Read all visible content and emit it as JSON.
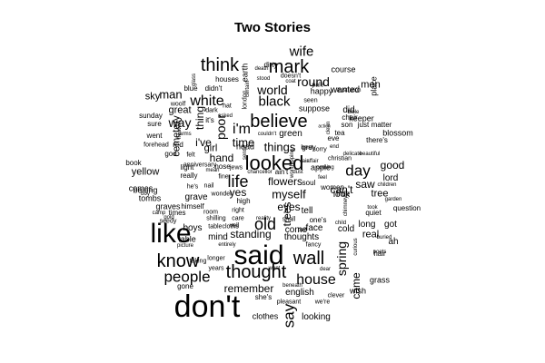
{
  "title": "Two Stories",
  "words": [
    {
      "text": "don't",
      "size": 34,
      "vertical": false
    },
    {
      "text": "like",
      "size": 30,
      "vertical": false
    },
    {
      "text": "said",
      "size": 30,
      "vertical": false
    },
    {
      "text": "looked",
      "size": 22,
      "vertical": false
    },
    {
      "text": "believe",
      "size": 20,
      "vertical": false
    },
    {
      "text": "mark",
      "size": 20,
      "vertical": false
    },
    {
      "text": "think",
      "size": 20,
      "vertical": false
    },
    {
      "text": "know",
      "size": 20,
      "vertical": false
    },
    {
      "text": "thought",
      "size": 20,
      "vertical": false
    },
    {
      "text": "wall",
      "size": 20,
      "vertical": false
    },
    {
      "text": "life",
      "size": 18,
      "vertical": false
    },
    {
      "text": "people",
      "size": 17,
      "vertical": false
    },
    {
      "text": "day",
      "size": 17,
      "vertical": false
    },
    {
      "text": "old",
      "size": 18,
      "vertical": false
    },
    {
      "text": "say",
      "size": 17,
      "vertical": true
    },
    {
      "text": "house",
      "size": 16,
      "vertical": false
    },
    {
      "text": "white",
      "size": 16,
      "vertical": false
    },
    {
      "text": "black",
      "size": 15,
      "vertical": false
    },
    {
      "text": "i'm",
      "size": 16,
      "vertical": false
    },
    {
      "text": "wife",
      "size": 15,
      "vertical": false
    },
    {
      "text": "round",
      "size": 14,
      "vertical": false
    },
    {
      "text": "world",
      "size": 14,
      "vertical": false
    },
    {
      "text": "poor",
      "size": 14,
      "vertical": true
    },
    {
      "text": "spring",
      "size": 14,
      "vertical": true
    },
    {
      "text": "myself",
      "size": 13,
      "vertical": false
    },
    {
      "text": "way",
      "size": 14,
      "vertical": false
    },
    {
      "text": "man",
      "size": 13,
      "vertical": false
    },
    {
      "text": "time",
      "size": 13,
      "vertical": false
    },
    {
      "text": "things",
      "size": 13,
      "vertical": false
    },
    {
      "text": "flowers",
      "size": 12,
      "vertical": false
    },
    {
      "text": "trees",
      "size": 12,
      "vertical": true
    },
    {
      "text": "remember",
      "size": 12,
      "vertical": false
    },
    {
      "text": "standing",
      "size": 12,
      "vertical": false
    },
    {
      "text": "thing",
      "size": 12,
      "vertical": true
    },
    {
      "text": "hand",
      "size": 12,
      "vertical": false
    },
    {
      "text": "i've",
      "size": 12,
      "vertical": false
    },
    {
      "text": "good",
      "size": 12,
      "vertical": false
    },
    {
      "text": "saw",
      "size": 12,
      "vertical": false
    },
    {
      "text": "yes",
      "size": 12,
      "vertical": false
    },
    {
      "text": "eyes",
      "size": 12,
      "vertical": false
    },
    {
      "text": "came",
      "size": 12,
      "vertical": true
    },
    {
      "text": "yellow",
      "size": 11,
      "vertical": false
    },
    {
      "text": "can't",
      "size": 12,
      "vertical": false
    },
    {
      "text": "great",
      "size": 11,
      "vertical": false
    },
    {
      "text": "sky",
      "size": 11,
      "vertical": false
    },
    {
      "text": "tree",
      "size": 11,
      "vertical": false
    },
    {
      "text": "real",
      "size": 11,
      "vertical": false
    },
    {
      "text": "men",
      "size": 11,
      "vertical": false
    },
    {
      "text": "girl",
      "size": 11,
      "vertical": false
    },
    {
      "text": "cemetery",
      "size": 11,
      "vertical": true
    },
    {
      "text": "looking",
      "size": 10,
      "vertical": false
    },
    {
      "text": "english",
      "size": 10,
      "vertical": false
    },
    {
      "text": "thoughts",
      "size": 10,
      "vertical": false
    },
    {
      "text": "mind",
      "size": 10,
      "vertical": false
    },
    {
      "text": "boys",
      "size": 10,
      "vertical": false
    },
    {
      "text": "grave",
      "size": 10,
      "vertical": false
    },
    {
      "text": "lord",
      "size": 10,
      "vertical": false
    },
    {
      "text": "tell",
      "size": 10,
      "vertical": false
    },
    {
      "text": "cold",
      "size": 10,
      "vertical": false
    },
    {
      "text": "got",
      "size": 10,
      "vertical": false
    },
    {
      "text": "long",
      "size": 10,
      "vertical": false
    },
    {
      "text": "ah",
      "size": 10,
      "vertical": false
    },
    {
      "text": "green",
      "size": 10,
      "vertical": false
    },
    {
      "text": "wanted",
      "size": 10,
      "vertical": false
    },
    {
      "text": "did",
      "size": 10,
      "vertical": false
    },
    {
      "text": "come",
      "size": 10,
      "vertical": false
    },
    {
      "text": "face",
      "size": 10,
      "vertical": false
    },
    {
      "text": "look",
      "size": 10,
      "vertical": false
    },
    {
      "text": "course",
      "size": 9,
      "vertical": false
    },
    {
      "text": "place",
      "size": 9,
      "vertical": true
    },
    {
      "text": "happy",
      "size": 9,
      "vertical": false
    },
    {
      "text": "suppose",
      "size": 9,
      "vertical": false
    },
    {
      "text": "keeper",
      "size": 9,
      "vertical": false
    },
    {
      "text": "blossom",
      "size": 9,
      "vertical": false
    },
    {
      "text": "there's",
      "size": 8,
      "vertical": false
    },
    {
      "text": "chair",
      "size": 8,
      "vertical": false
    },
    {
      "text": "son",
      "size": 8,
      "vertical": false
    },
    {
      "text": "just",
      "size": 8,
      "vertical": false
    },
    {
      "text": "matter",
      "size": 8,
      "vertical": false
    },
    {
      "text": "quiet",
      "size": 8,
      "vertical": false
    },
    {
      "text": "question",
      "size": 8,
      "vertical": false
    },
    {
      "text": "women",
      "size": 8,
      "vertical": false
    },
    {
      "text": "christian",
      "size": 7,
      "vertical": false
    },
    {
      "text": "apple",
      "size": 9,
      "vertical": false
    },
    {
      "text": "soul",
      "size": 8,
      "vertical": false
    },
    {
      "text": "little",
      "size": 8,
      "vertical": false
    },
    {
      "text": "one's",
      "size": 8,
      "vertical": false
    },
    {
      "text": "fancy",
      "size": 7,
      "vertical": false
    },
    {
      "text": "wish",
      "size": 9,
      "vertical": false
    },
    {
      "text": "clever",
      "size": 7,
      "vertical": false
    },
    {
      "text": "we're",
      "size": 7,
      "vertical": false
    },
    {
      "text": "she's",
      "size": 8,
      "vertical": false
    },
    {
      "text": "clothes",
      "size": 9,
      "vertical": false
    },
    {
      "text": "gone",
      "size": 8,
      "vertical": false
    },
    {
      "text": "pleasant",
      "size": 7,
      "vertical": false
    },
    {
      "text": "grass",
      "size": 9,
      "vertical": false
    },
    {
      "text": "hair",
      "size": 8,
      "vertical": false
    },
    {
      "text": "table",
      "size": 9,
      "vertical": false
    },
    {
      "text": "graves",
      "size": 9,
      "vertical": false
    },
    {
      "text": "tombs",
      "size": 9,
      "vertical": false
    },
    {
      "text": "belong",
      "size": 9,
      "vertical": false
    },
    {
      "text": "comes",
      "size": 9,
      "vertical": false
    },
    {
      "text": "times",
      "size": 8,
      "vertical": false
    },
    {
      "text": "sunday",
      "size": 8,
      "vertical": false
    },
    {
      "text": "sure",
      "size": 8,
      "vertical": false
    },
    {
      "text": "went",
      "size": 8,
      "vertical": false
    },
    {
      "text": "forehead",
      "size": 7,
      "vertical": false
    },
    {
      "text": "red",
      "size": 8,
      "vertical": false
    },
    {
      "text": "god",
      "size": 8,
      "vertical": false
    },
    {
      "text": "book",
      "size": 8,
      "vertical": false
    },
    {
      "text": "anniversary",
      "size": 7,
      "vertical": false
    },
    {
      "text": "nose",
      "size": 8,
      "vertical": false
    },
    {
      "text": "jews",
      "size": 7,
      "vertical": false
    },
    {
      "text": "felt",
      "size": 7,
      "vertical": false
    },
    {
      "text": "really",
      "size": 8,
      "vertical": false
    },
    {
      "text": "light",
      "size": 8,
      "vertical": false
    },
    {
      "text": "he's",
      "size": 7,
      "vertical": false
    },
    {
      "text": "nail",
      "size": 7,
      "vertical": false
    },
    {
      "text": "wonder",
      "size": 7,
      "vertical": false
    },
    {
      "text": "fine",
      "size": 7,
      "vertical": false
    },
    {
      "text": "high",
      "size": 8,
      "vertical": false
    },
    {
      "text": "right",
      "size": 7,
      "vertical": false
    },
    {
      "text": "himself",
      "size": 8,
      "vertical": false
    },
    {
      "text": "room",
      "size": 7,
      "vertical": false
    },
    {
      "text": "shilling",
      "size": 7,
      "vertical": false
    },
    {
      "text": "care",
      "size": 7,
      "vertical": false
    },
    {
      "text": "tablecloths",
      "size": 7,
      "vertical": false
    },
    {
      "text": "vell",
      "size": 7,
      "vertical": false
    },
    {
      "text": "reality",
      "size": 6,
      "vertical": false
    },
    {
      "text": "picture",
      "size": 6,
      "vertical": false
    },
    {
      "text": "entirely",
      "size": 6,
      "vertical": false
    },
    {
      "text": "years",
      "size": 7,
      "vertical": false
    },
    {
      "text": "taking",
      "size": 7,
      "vertical": false
    },
    {
      "text": "longer",
      "size": 7,
      "vertical": false
    },
    {
      "text": "seedy",
      "size": 7,
      "vertical": false
    },
    {
      "text": "gold",
      "size": 6,
      "vertical": false
    },
    {
      "text": "camp",
      "size": 6,
      "vertical": false
    },
    {
      "text": "boy",
      "size": 6,
      "vertical": false
    },
    {
      "text": "want",
      "size": 6,
      "vertical": false
    },
    {
      "text": "beneath",
      "size": 6,
      "vertical": false
    },
    {
      "text": "dear",
      "size": 6,
      "vertical": false
    },
    {
      "text": "bed",
      "size": 6,
      "vertical": false
    },
    {
      "text": "shall",
      "size": 7,
      "vertical": false
    },
    {
      "text": "child",
      "size": 6,
      "vertical": false
    },
    {
      "text": "took",
      "size": 6,
      "vertical": false
    },
    {
      "text": "children",
      "size": 6,
      "vertical": false
    },
    {
      "text": "garden",
      "size": 6,
      "vertical": false
    },
    {
      "text": "buried",
      "size": 6,
      "vertical": false
    },
    {
      "text": "curious",
      "size": 6,
      "vertical": true
    },
    {
      "text": "chimney",
      "size": 6,
      "vertical": true
    },
    {
      "text": "poets",
      "size": 6,
      "vertical": false
    },
    {
      "text": "glass",
      "size": 6,
      "vertical": true
    },
    {
      "text": "houses",
      "size": 8,
      "vertical": false
    },
    {
      "text": "blue",
      "size": 8,
      "vertical": false
    },
    {
      "text": "didn't",
      "size": 8,
      "vertical": false
    },
    {
      "text": "woolf",
      "size": 7,
      "vertical": false
    },
    {
      "text": "arms",
      "size": 6,
      "vertical": false
    },
    {
      "text": "dark",
      "size": 7,
      "vertical": false
    },
    {
      "text": "hat",
      "size": 7,
      "vertical": false
    },
    {
      "text": "asked",
      "size": 6,
      "vertical": false
    },
    {
      "text": "it's",
      "size": 8,
      "vertical": false
    },
    {
      "text": "head",
      "size": 9,
      "vertical": false
    },
    {
      "text": "sense",
      "size": 6,
      "vertical": true
    },
    {
      "text": "couldn't",
      "size": 6,
      "vertical": false
    },
    {
      "text": "chancellor",
      "size": 6,
      "vertical": false
    },
    {
      "text": "ain't",
      "size": 8,
      "vertical": false
    },
    {
      "text": "dust",
      "size": 6,
      "vertical": false
    },
    {
      "text": "feel",
      "size": 6,
      "vertical": false
    },
    {
      "text": "delicate",
      "size": 6,
      "vertical": false
    },
    {
      "text": "beautiful",
      "size": 6,
      "vertical": false
    },
    {
      "text": "bible",
      "size": 6,
      "vertical": false
    },
    {
      "text": "illustration",
      "size": 6,
      "vertical": false
    },
    {
      "text": "seen",
      "size": 7,
      "vertical": false
    },
    {
      "text": "pale",
      "size": 7,
      "vertical": false
    },
    {
      "text": "doesn't",
      "size": 7,
      "vertical": false
    },
    {
      "text": "coat",
      "size": 6,
      "vertical": false
    },
    {
      "text": "stood",
      "size": 6,
      "vertical": false
    },
    {
      "text": "death",
      "size": 6,
      "vertical": false
    },
    {
      "text": "dirty",
      "size": 8,
      "vertical": false
    },
    {
      "text": "earth",
      "size": 9,
      "vertical": true
    },
    {
      "text": "certain",
      "size": 6,
      "vertical": true
    },
    {
      "text": "london",
      "size": 7,
      "vertical": true
    },
    {
      "text": "best",
      "size": 7,
      "vertical": false
    },
    {
      "text": "sorry",
      "size": 7,
      "vertical": false
    },
    {
      "text": "end",
      "size": 6,
      "vertical": false
    },
    {
      "text": "tea",
      "size": 8,
      "vertical": false
    },
    {
      "text": "eve",
      "size": 8,
      "vertical": false
    },
    {
      "text": "action",
      "size": 5,
      "vertical": false
    },
    {
      "text": "mean",
      "size": 6,
      "vertical": false
    },
    {
      "text": "worshipping",
      "size": 6,
      "vertical": true
    },
    {
      "text": "affair",
      "size": 6,
      "vertical": false
    },
    {
      "text": "air",
      "size": 6,
      "vertical": false
    },
    {
      "text": "coming",
      "size": 6,
      "vertical": false
    },
    {
      "text": "grey",
      "size": 8,
      "vertical": false
    },
    {
      "text": "clean",
      "size": 6,
      "vertical": true
    },
    {
      "text": "heaven",
      "size": 6,
      "vertical": true
    },
    {
      "text": "big",
      "size": 7,
      "vertical": true
    }
  ]
}
